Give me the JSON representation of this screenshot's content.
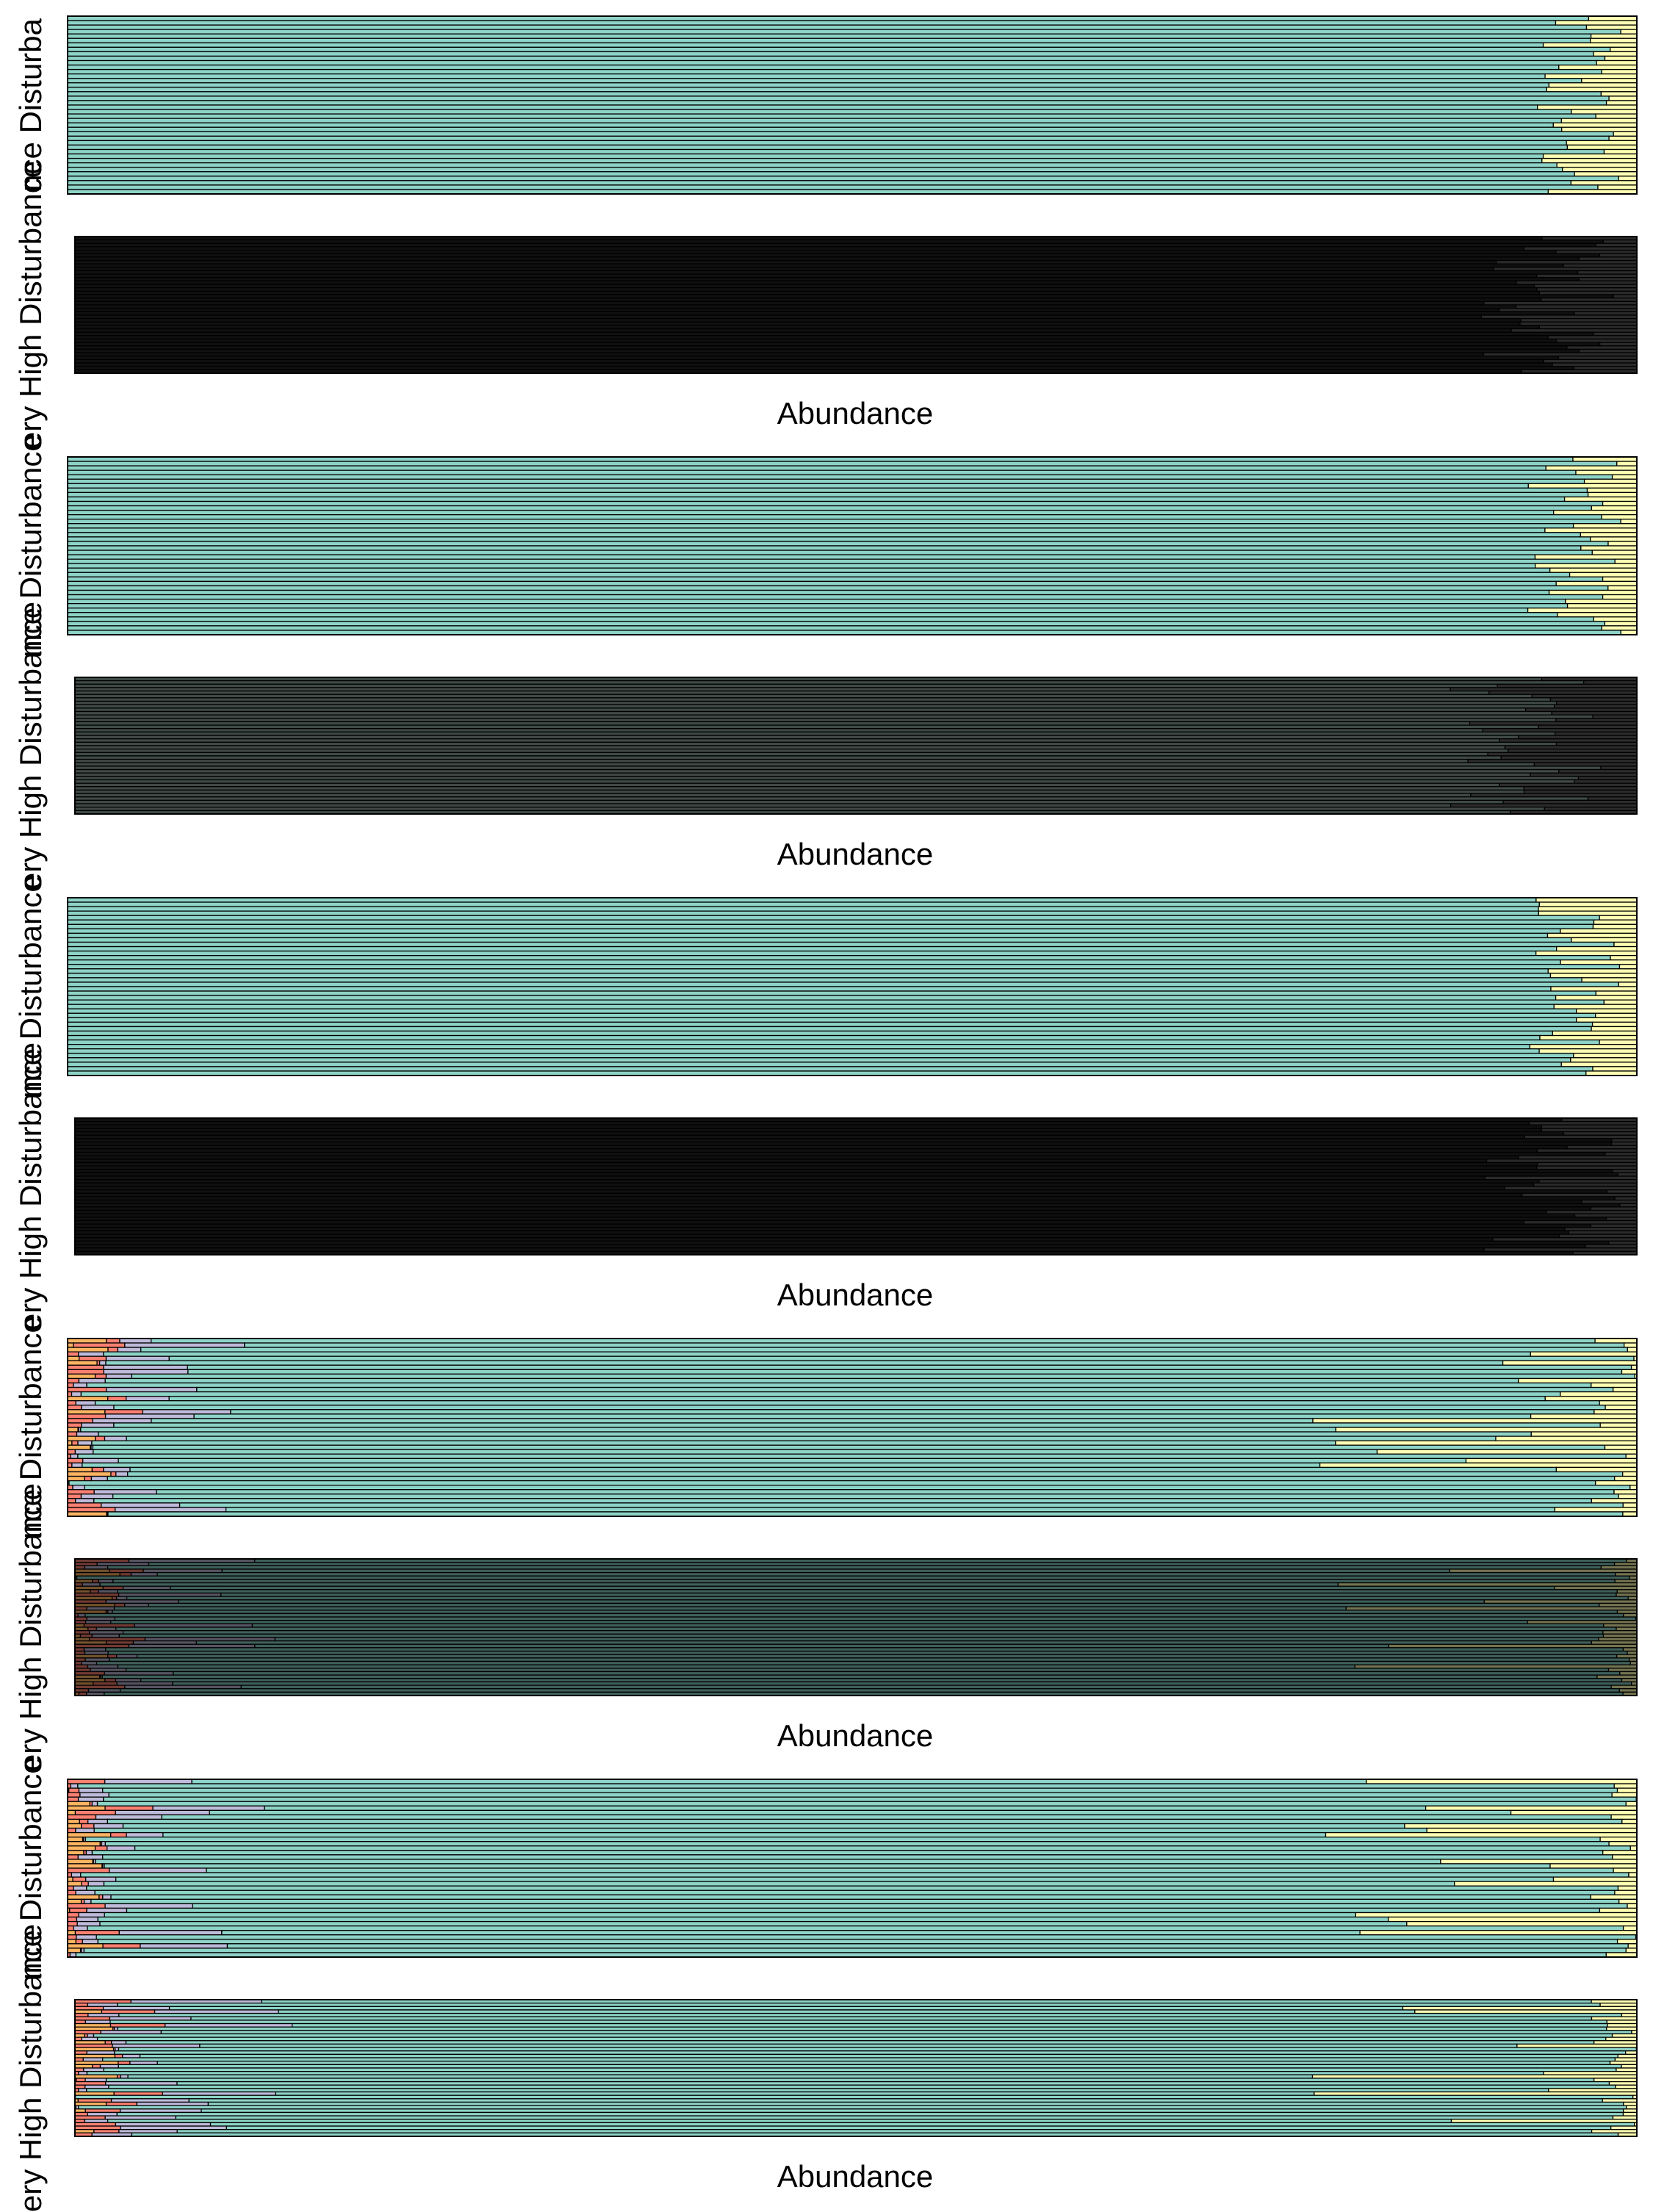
{
  "colors": {
    "dominant": "#8dd3c7",
    "yellow": "#ffffb3",
    "lavender": "#bebada",
    "salmon": "#fb8072",
    "blue": "#80b1d3",
    "orange": "#fdb462",
    "green": "#b3de69",
    "dark_border": "#000000"
  },
  "chart_data": [
    {
      "type": "bar",
      "orientation": "horizontal",
      "stacked": true,
      "title": "",
      "row_label": "Low Disturbance",
      "rows": 40,
      "pattern": "dominant",
      "xlabel": "",
      "ylabel": "nce Disturba",
      "group": 1
    },
    {
      "type": "bar",
      "orientation": "horizontal",
      "stacked": true,
      "title": "",
      "rows": 40,
      "pattern": "dark",
      "xlabel": "Abundance",
      "ylabel": "ery High Disturbance",
      "group": 1
    },
    {
      "type": "bar",
      "orientation": "horizontal",
      "stacked": true,
      "rows": 40,
      "pattern": "dominant",
      "xlabel": "",
      "ylabel": "nce Disturbance",
      "group": 2
    },
    {
      "type": "bar",
      "orientation": "horizontal",
      "stacked": true,
      "rows": 40,
      "pattern": "dim",
      "xlabel": "Abundance",
      "ylabel": "ery High Disturbance",
      "group": 2
    },
    {
      "type": "bar",
      "orientation": "horizontal",
      "stacked": true,
      "rows": 40,
      "pattern": "dominant",
      "xlabel": "",
      "ylabel": "nce Disturbance",
      "group": 3
    },
    {
      "type": "bar",
      "orientation": "horizontal",
      "stacked": true,
      "rows": 40,
      "pattern": "dark",
      "xlabel": "Abundance",
      "ylabel": "ery High Disturbance",
      "group": 3
    },
    {
      "type": "bar",
      "orientation": "horizontal",
      "stacked": true,
      "rows": 40,
      "pattern": "mixed",
      "xlabel": "",
      "ylabel": "nce Disturbance",
      "group": 4
    },
    {
      "type": "bar",
      "orientation": "horizontal",
      "stacked": true,
      "rows": 40,
      "pattern": "mixed-dim",
      "xlabel": "Abundance",
      "ylabel": "ery High Disturbance",
      "group": 4
    },
    {
      "type": "bar",
      "orientation": "horizontal",
      "stacked": true,
      "rows": 40,
      "pattern": "mixed",
      "xlabel": "",
      "ylabel": "nce Disturbance",
      "group": 5
    },
    {
      "type": "bar",
      "orientation": "horizontal",
      "stacked": true,
      "rows": 40,
      "pattern": "mixed",
      "xlabel": "Abundance",
      "ylabel": "ery High Disturbance",
      "group": 5
    }
  ],
  "axis": {
    "xlabel": "Abundance"
  }
}
